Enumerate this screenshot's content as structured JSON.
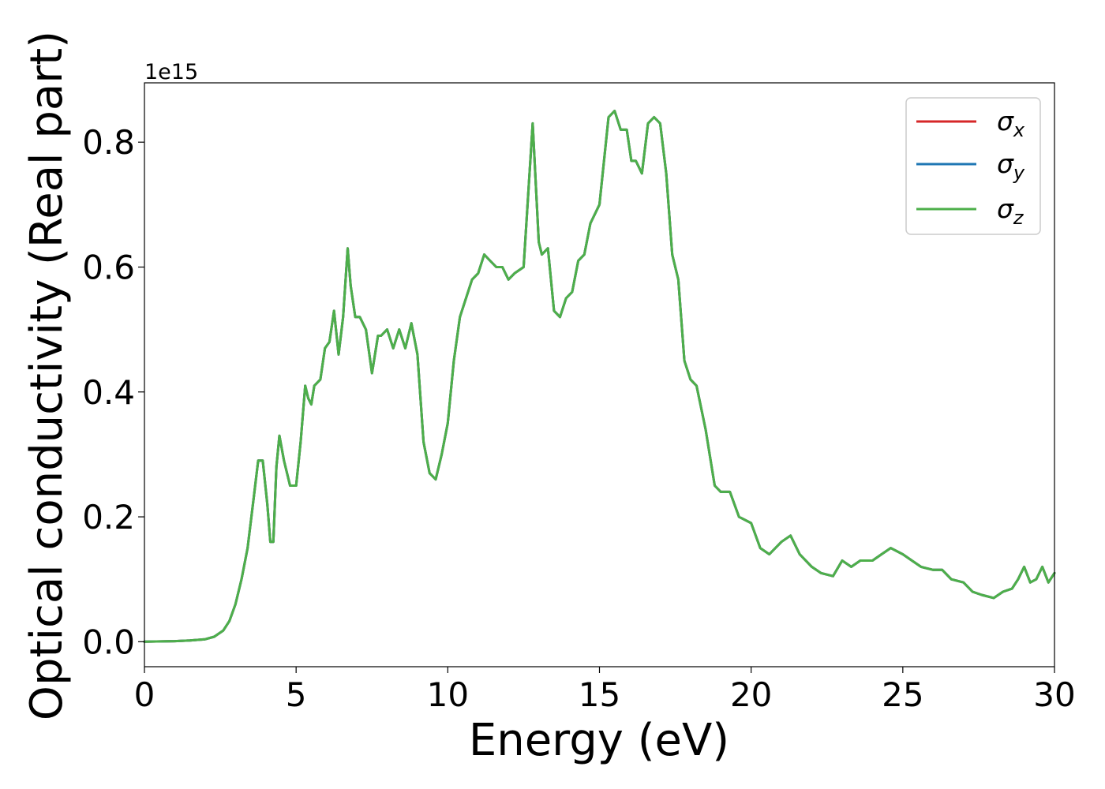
{
  "chart_data": {
    "type": "line",
    "title": "",
    "xlabel": "Energy (eV)",
    "ylabel": "Optical conductivity (Real part)",
    "y_offset_label": "1e15",
    "xlim": [
      0,
      30
    ],
    "ylim": [
      -0.04,
      0.895
    ],
    "y_scale": 1000000000000000.0,
    "grid": false,
    "legend_position": "top-right",
    "xticks": [
      0,
      5,
      10,
      15,
      20,
      25,
      30
    ],
    "xtick_labels": [
      "0",
      "5",
      "10",
      "15",
      "20",
      "25",
      "30"
    ],
    "yticks": [
      0.0,
      0.2,
      0.4,
      0.6,
      0.8
    ],
    "ytick_labels": [
      "0.0",
      "0.2",
      "0.4",
      "0.6",
      "0.8"
    ],
    "series": [
      {
        "name": "σx",
        "legend_base": "σ",
        "legend_sub": "x",
        "color": "#d62728"
      },
      {
        "name": "σy",
        "legend_base": "σ",
        "legend_sub": "y",
        "color": "#1f77b4"
      },
      {
        "name": "σz",
        "legend_base": "σ",
        "legend_sub": "z",
        "color": "#4daf4a"
      }
    ],
    "x": [
      0,
      1,
      1.5,
      2,
      2.3,
      2.6,
      2.8,
      3.0,
      3.2,
      3.4,
      3.6,
      3.75,
      3.9,
      4.05,
      4.15,
      4.25,
      4.35,
      4.45,
      4.6,
      4.8,
      5.0,
      5.15,
      5.3,
      5.4,
      5.5,
      5.6,
      5.8,
      5.95,
      6.1,
      6.25,
      6.4,
      6.55,
      6.7,
      6.8,
      6.95,
      7.1,
      7.3,
      7.5,
      7.7,
      7.8,
      8.0,
      8.2,
      8.4,
      8.6,
      8.8,
      9.0,
      9.2,
      9.4,
      9.6,
      9.8,
      10.0,
      10.2,
      10.4,
      10.6,
      10.8,
      11.0,
      11.2,
      11.4,
      11.6,
      11.8,
      12.0,
      12.2,
      12.5,
      12.8,
      13.0,
      13.1,
      13.3,
      13.5,
      13.7,
      13.9,
      14.1,
      14.3,
      14.5,
      14.7,
      15.0,
      15.3,
      15.5,
      15.7,
      15.9,
      16.05,
      16.2,
      16.4,
      16.6,
      16.8,
      17.0,
      17.2,
      17.4,
      17.6,
      17.8,
      18.0,
      18.2,
      18.5,
      18.8,
      19.0,
      19.3,
      19.6,
      20.0,
      20.3,
      20.6,
      21.0,
      21.3,
      21.6,
      22.0,
      22.3,
      22.7,
      23.0,
      23.3,
      23.6,
      24.0,
      24.3,
      24.6,
      25.0,
      25.3,
      25.6,
      26.0,
      26.3,
      26.6,
      27.0,
      27.3,
      27.6,
      28.0,
      28.3,
      28.6,
      28.8,
      29.0,
      29.2,
      29.4,
      29.6,
      29.8,
      30.0
    ],
    "y": [
      0.0,
      0.001,
      0.002,
      0.004,
      0.008,
      0.018,
      0.033,
      0.06,
      0.1,
      0.15,
      0.23,
      0.29,
      0.29,
      0.22,
      0.16,
      0.16,
      0.28,
      0.33,
      0.29,
      0.25,
      0.25,
      0.32,
      0.41,
      0.39,
      0.38,
      0.41,
      0.42,
      0.47,
      0.48,
      0.53,
      0.46,
      0.52,
      0.63,
      0.57,
      0.52,
      0.52,
      0.5,
      0.43,
      0.49,
      0.49,
      0.5,
      0.47,
      0.5,
      0.47,
      0.51,
      0.46,
      0.32,
      0.27,
      0.26,
      0.3,
      0.35,
      0.45,
      0.52,
      0.55,
      0.58,
      0.59,
      0.62,
      0.61,
      0.6,
      0.6,
      0.58,
      0.59,
      0.6,
      0.83,
      0.64,
      0.62,
      0.63,
      0.53,
      0.52,
      0.55,
      0.56,
      0.61,
      0.62,
      0.67,
      0.7,
      0.84,
      0.85,
      0.82,
      0.82,
      0.77,
      0.77,
      0.75,
      0.83,
      0.84,
      0.83,
      0.75,
      0.62,
      0.58,
      0.45,
      0.42,
      0.41,
      0.34,
      0.25,
      0.24,
      0.24,
      0.2,
      0.19,
      0.15,
      0.14,
      0.16,
      0.17,
      0.14,
      0.12,
      0.11,
      0.105,
      0.13,
      0.12,
      0.13,
      0.13,
      0.14,
      0.15,
      0.14,
      0.13,
      0.12,
      0.115,
      0.115,
      0.1,
      0.095,
      0.08,
      0.075,
      0.07,
      0.08,
      0.085,
      0.1,
      0.12,
      0.095,
      0.1,
      0.12,
      0.095,
      0.11
    ]
  }
}
